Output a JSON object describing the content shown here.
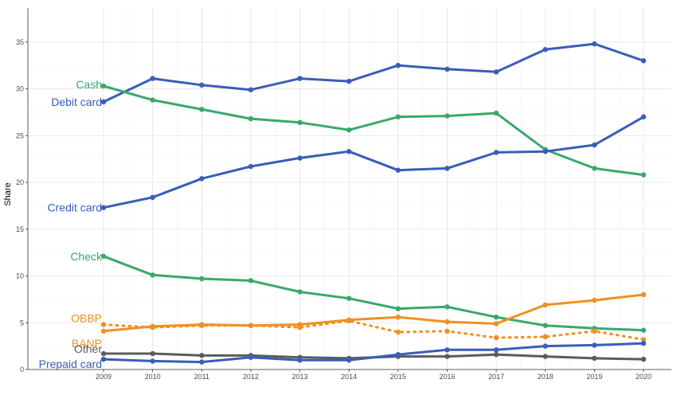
{
  "chart_data": {
    "type": "line",
    "title": "",
    "xlabel": "",
    "ylabel": "Share",
    "x": [
      2009,
      2010,
      2011,
      2012,
      2013,
      2014,
      2015,
      2016,
      2017,
      2018,
      2019,
      2020
    ],
    "x_tick_labels": [
      "2009",
      "2010",
      "2011",
      "2012",
      "2013",
      "2014",
      "2015",
      "2016",
      "2017",
      "2018",
      "2019",
      "2020"
    ],
    "ylim": [
      0,
      37.5
    ],
    "y_ticks": [
      0,
      5,
      10,
      15,
      20,
      25,
      30,
      35
    ],
    "y_tick_labels": [
      "0",
      "5",
      "10",
      "15",
      "20",
      "25",
      "30",
      "35"
    ],
    "grid": true,
    "legend": "none (direct labels at left of lines)",
    "series": [
      {
        "name": "Debit card",
        "color": "#3a5dba",
        "style": "solid",
        "values": [
          28.6,
          31.1,
          30.4,
          29.9,
          31.1,
          30.8,
          32.5,
          32.1,
          31.8,
          34.2,
          34.8,
          33.0
        ]
      },
      {
        "name": "Cash",
        "color": "#3aa86b",
        "style": "solid",
        "values": [
          30.3,
          28.8,
          27.8,
          26.8,
          26.4,
          25.6,
          27.0,
          27.1,
          27.4,
          23.5,
          21.5,
          20.8
        ]
      },
      {
        "name": "Credit card",
        "color": "#3a5dba",
        "style": "solid",
        "values": [
          17.3,
          18.4,
          20.4,
          21.7,
          22.6,
          23.3,
          21.3,
          21.5,
          23.2,
          23.3,
          24.0,
          27.0
        ]
      },
      {
        "name": "Check",
        "color": "#3aa86b",
        "style": "solid",
        "values": [
          12.1,
          10.1,
          9.7,
          9.5,
          8.3,
          7.6,
          6.5,
          6.7,
          5.6,
          4.7,
          4.4,
          4.2
        ]
      },
      {
        "name": "OBBP",
        "color": "#f0901f",
        "style": "dotted",
        "values": [
          4.8,
          4.5,
          4.7,
          4.7,
          4.5,
          5.2,
          4.0,
          4.1,
          3.4,
          3.5,
          4.1,
          3.2
        ]
      },
      {
        "name": "BANP",
        "color": "#f0901f",
        "style": "solid",
        "values": [
          4.1,
          4.6,
          4.8,
          4.7,
          4.8,
          5.3,
          5.6,
          5.1,
          4.9,
          6.9,
          7.4,
          8.0
        ]
      },
      {
        "name": "Other",
        "color": "#5c5c5c",
        "style": "solid",
        "values": [
          1.7,
          1.7,
          1.5,
          1.5,
          1.3,
          1.2,
          1.4,
          1.4,
          1.6,
          1.4,
          1.2,
          1.1
        ]
      },
      {
        "name": "Prepaid card",
        "color": "#3a5dba",
        "style": "solid",
        "values": [
          1.1,
          0.9,
          0.8,
          1.3,
          1.0,
          1.0,
          1.6,
          2.1,
          2.1,
          2.5,
          2.6,
          2.8
        ]
      }
    ]
  }
}
